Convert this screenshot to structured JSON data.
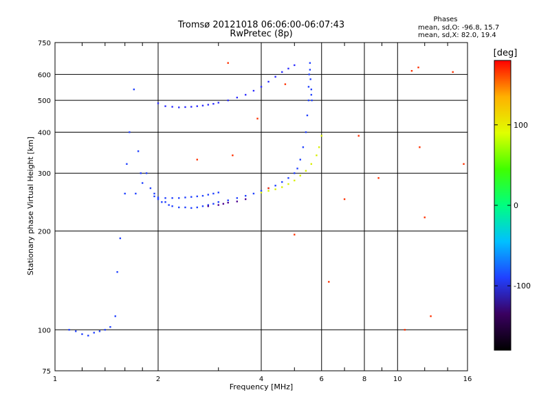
{
  "chart_data": {
    "type": "scatter",
    "title": "Tromsø 20121018 06:06:00-06:07:43",
    "subtitle": "RwPretec (8p)",
    "xlabel": "Frequency [MHz]",
    "ylabel": "Stationary phase Virtual Height [km]",
    "xscale": "log",
    "yscale": "log",
    "xlim": [
      1,
      16
    ],
    "ylim": [
      75,
      750
    ],
    "grid": true,
    "xticks": [
      1,
      2,
      4,
      6,
      8,
      10,
      16
    ],
    "yticks": [
      75,
      100,
      200,
      300,
      400,
      500,
      600,
      750
    ],
    "phase_stats": {
      "title": "Phases",
      "line_o": "mean, sd,O: -96.8, 15.7",
      "line_x": "mean, sd,X:  82.0, 19.4"
    },
    "colorbar": {
      "label": "[deg]",
      "range": [
        -180,
        180
      ],
      "ticks": [
        -100,
        0,
        100
      ],
      "colors": [
        "#000000",
        "#3a0060",
        "#2040ff",
        "#00c0ff",
        "#00ff80",
        "#40ff00",
        "#e0ff00",
        "#ffb000",
        "#ff0000"
      ]
    },
    "series": [
      {
        "color": "#1f3fff",
        "x": [
          1.1,
          1.15,
          1.2,
          1.25,
          1.3,
          1.35,
          1.4,
          1.45,
          1.5,
          1.52,
          1.55,
          1.6,
          1.62,
          1.65,
          1.7,
          1.72,
          1.75,
          1.78,
          1.8,
          1.85,
          1.9,
          1.95,
          2.0,
          2.05,
          2.1,
          2.15,
          2.2,
          2.3,
          2.4,
          2.5,
          2.6,
          2.7,
          2.8,
          2.9,
          3.0,
          3.2,
          3.4,
          3.6,
          3.8,
          4.0,
          4.2,
          4.4,
          4.6,
          4.8,
          5.0,
          5.1,
          5.2,
          5.3,
          5.4,
          5.45,
          5.5,
          5.5,
          5.52,
          5.55,
          5.55,
          5.57,
          5.6,
          5.6,
          5.62
        ],
        "y": [
          100,
          99,
          97,
          96,
          98,
          99,
          100,
          102,
          110,
          150,
          190,
          260,
          320,
          400,
          540,
          260,
          350,
          300,
          280,
          300,
          270,
          260,
          250,
          245,
          245,
          240,
          238,
          236,
          236,
          235,
          236,
          238,
          240,
          242,
          245,
          248,
          252,
          256,
          260,
          265,
          270,
          275,
          282,
          290,
          300,
          310,
          330,
          360,
          400,
          450,
          500,
          550,
          600,
          650,
          620,
          580,
          540,
          520,
          500
        ]
      },
      {
        "color": "#1f3fff",
        "x": [
          1.95,
          2.0,
          2.1,
          2.2,
          2.3,
          2.4,
          2.5,
          2.6,
          2.7,
          2.8,
          2.9,
          3.0
        ],
        "y": [
          255,
          253,
          252,
          252,
          252,
          253,
          254,
          255,
          256,
          258,
          260,
          262
        ]
      },
      {
        "color": "#2b2bff",
        "x": [
          2.0,
          2.1,
          2.2,
          2.3,
          2.4,
          2.5,
          2.6,
          2.7,
          2.8,
          2.9,
          3.0,
          3.2,
          3.4,
          3.6,
          3.8,
          4.0,
          4.2,
          4.4,
          4.6,
          4.8,
          5.0
        ],
        "y": [
          490,
          480,
          478,
          476,
          477,
          478,
          480,
          482,
          485,
          488,
          492,
          500,
          510,
          520,
          535,
          550,
          570,
          590,
          610,
          625,
          640
        ]
      },
      {
        "color": "#d8f000",
        "x": [
          4.0,
          4.2,
          4.4,
          4.6,
          4.8,
          5.0,
          5.2,
          5.4,
          5.6,
          5.8,
          5.9,
          6.0
        ],
        "y": [
          262,
          265,
          268,
          272,
          278,
          285,
          295,
          305,
          320,
          340,
          360,
          390
        ]
      },
      {
        "color": "#4a0090",
        "x": [
          2.8,
          3.0,
          3.1,
          3.2,
          3.4,
          3.6
        ],
        "y": [
          238,
          240,
          242,
          244,
          246,
          250
        ]
      },
      {
        "color": "#ff3000",
        "x": [
          2.6,
          3.2,
          3.3,
          3.9,
          4.2,
          4.7,
          5.0,
          6.3,
          7.0,
          7.7,
          8.8,
          10.5,
          11.0,
          11.5,
          11.6,
          12.0,
          12.5,
          14.5,
          15.6
        ],
        "y": [
          330,
          650,
          340,
          440,
          270,
          560,
          195,
          140,
          250,
          390,
          290,
          100,
          615,
          630,
          360,
          220,
          110,
          610,
          320
        ]
      }
    ]
  }
}
